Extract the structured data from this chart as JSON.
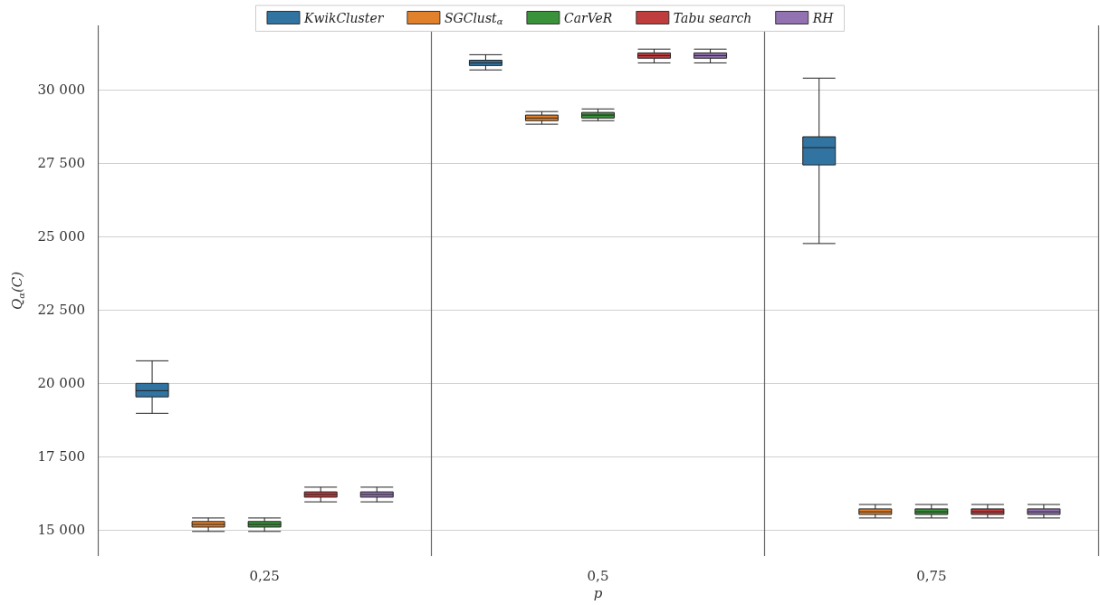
{
  "chart_data": {
    "type": "box",
    "xlabel": "p",
    "ylabel": "Q$_{α}$(C)",
    "categories": [
      "0,25",
      "0,5",
      "0,75"
    ],
    "ylim": [
      14100,
      32200
    ],
    "yticks": [
      {
        "value": 15000,
        "label": "15 000"
      },
      {
        "value": 17500,
        "label": "17 500"
      },
      {
        "value": 20000,
        "label": "20 000"
      },
      {
        "value": 22500,
        "label": "22 500"
      },
      {
        "value": 25000,
        "label": "25 000"
      },
      {
        "value": 27500,
        "label": "27 500"
      },
      {
        "value": 30000,
        "label": "30 000"
      }
    ],
    "grid": true,
    "legend": "top",
    "series": [
      {
        "name": "KwikCluster",
        "color": "#3274a1",
        "boxes": [
          {
            "low": 18970,
            "q1": 19530,
            "median": 19740,
            "q3": 19990,
            "high": 20760
          },
          {
            "low": 30680,
            "q1": 30830,
            "median": 30920,
            "q3": 31010,
            "high": 31200
          },
          {
            "low": 24760,
            "q1": 27440,
            "median": 28030,
            "q3": 28400,
            "high": 30400
          }
        ]
      },
      {
        "name": "SGClust$_{α}$",
        "color": "#e1812c",
        "boxes": [
          {
            "low": 14940,
            "q1": 15090,
            "median": 15180,
            "q3": 15280,
            "high": 15400
          },
          {
            "low": 28830,
            "q1": 28950,
            "median": 29040,
            "q3": 29140,
            "high": 29260
          },
          {
            "low": 15400,
            "q1": 15520,
            "median": 15610,
            "q3": 15710,
            "high": 15860
          }
        ]
      },
      {
        "name": "CarVeR",
        "color": "#3a923a",
        "boxes": [
          {
            "low": 14940,
            "q1": 15090,
            "median": 15180,
            "q3": 15280,
            "high": 15400
          },
          {
            "low": 28950,
            "q1": 29040,
            "median": 29140,
            "q3": 29230,
            "high": 29350
          },
          {
            "low": 15400,
            "q1": 15520,
            "median": 15610,
            "q3": 15710,
            "high": 15860
          }
        ]
      },
      {
        "name": "Tabu search",
        "color": "#c03d3e",
        "boxes": [
          {
            "low": 15950,
            "q1": 16110,
            "median": 16200,
            "q3": 16290,
            "high": 16450
          },
          {
            "low": 30920,
            "q1": 31080,
            "median": 31170,
            "q3": 31260,
            "high": 31390
          },
          {
            "low": 15400,
            "q1": 15520,
            "median": 15610,
            "q3": 15710,
            "high": 15860
          }
        ]
      },
      {
        "name": "RH",
        "color": "#9372b2",
        "boxes": [
          {
            "low": 15950,
            "q1": 16110,
            "median": 16200,
            "q3": 16290,
            "high": 16450
          },
          {
            "low": 30920,
            "q1": 31080,
            "median": 31170,
            "q3": 31260,
            "high": 31390
          },
          {
            "low": 15400,
            "q1": 15520,
            "median": 15610,
            "q3": 15710,
            "high": 15860
          }
        ]
      }
    ]
  }
}
